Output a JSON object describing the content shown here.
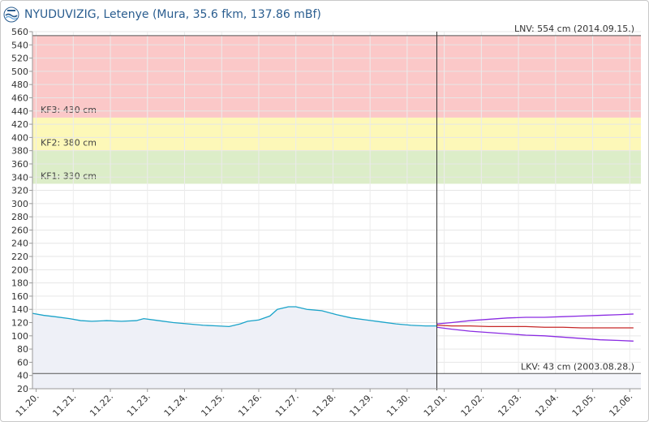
{
  "header": {
    "title": "NYUDUVIZIG, Letenye (Mura, 35.6 fkm, 137.86 mBf)",
    "logo_icon": "water-authority-logo-icon"
  },
  "chart_data": {
    "type": "line",
    "title": "NYUDUVIZIG, Letenye (Mura, 35.6 fkm, 137.86 mBf)",
    "xlabel": "",
    "ylabel": "",
    "ylim": [
      20,
      560
    ],
    "y_ticks": [
      20,
      40,
      60,
      80,
      100,
      120,
      140,
      160,
      180,
      200,
      220,
      240,
      260,
      280,
      300,
      320,
      340,
      360,
      380,
      400,
      420,
      440,
      460,
      480,
      500,
      520,
      540,
      560
    ],
    "x_tick_labels": [
      "11.20.",
      "11.21.",
      "11.22.",
      "11.23.",
      "11.24.",
      "11.25.",
      "11.26.",
      "11.27.",
      "11.28.",
      "11.29.",
      "11.30.",
      "12.01.",
      "12.02.",
      "12.03.",
      "12.04.",
      "12.05.",
      "12.06."
    ],
    "xlim": [
      0,
      16.4
    ],
    "current_time_x": 10.9,
    "grid": true,
    "zones": [
      {
        "label": "KF1: 330 cm",
        "from": 330,
        "to": 380,
        "color": "#dcedc8"
      },
      {
        "label": "KF2: 380 cm",
        "from": 380,
        "to": 430,
        "color": "#fdf8b8"
      },
      {
        "label": "KF3: 430 cm",
        "from": 430,
        "to": 554,
        "color": "#fbc8c8"
      }
    ],
    "reference_lines": [
      {
        "label": "LNV: 554 cm (2014.09.15.)",
        "value": 554,
        "color": "#555555"
      },
      {
        "label": "LKV: 43 cm (2003.08.28.)",
        "value": 43,
        "color": "#555555"
      }
    ],
    "series": [
      {
        "color": "#1aa3c9",
        "fill": "#eef0f7",
        "x": [
          0,
          0.3,
          0.6,
          1.0,
          1.3,
          1.6,
          2.0,
          2.4,
          2.8,
          3.0,
          3.4,
          3.8,
          4.2,
          4.6,
          5.0,
          5.3,
          5.6,
          5.8,
          6.1,
          6.4,
          6.6,
          6.9,
          7.1,
          7.4,
          7.8,
          8.2,
          8.6,
          9.0,
          9.4,
          9.8,
          10.2,
          10.6,
          10.9
        ],
        "values": [
          134,
          131,
          129,
          126,
          123,
          122,
          123,
          122,
          123,
          126,
          123,
          120,
          118,
          116,
          115,
          114,
          118,
          122,
          124,
          130,
          140,
          144,
          144,
          140,
          138,
          132,
          127,
          124,
          121,
          118,
          116,
          115,
          115
        ]
      },
      {
        "color": "#8a2be2",
        "x": [
          10.9,
          11.3,
          11.8,
          12.3,
          12.8,
          13.3,
          13.8,
          14.3,
          14.8,
          15.3,
          15.8,
          16.2
        ],
        "values": [
          118,
          120,
          123,
          125,
          127,
          128,
          128,
          129,
          130,
          131,
          132,
          133
        ]
      },
      {
        "color": "#c62828",
        "x": [
          10.9,
          11.3,
          11.8,
          12.3,
          12.8,
          13.3,
          13.8,
          14.3,
          14.8,
          15.3,
          15.8,
          16.2
        ],
        "values": [
          116,
          115,
          115,
          114,
          114,
          114,
          113,
          113,
          112,
          112,
          112,
          112
        ]
      },
      {
        "color": "#8a2be2",
        "x": [
          10.9,
          11.3,
          11.8,
          12.3,
          12.8,
          13.3,
          13.8,
          14.3,
          14.8,
          15.3,
          15.8,
          16.2
        ],
        "values": [
          113,
          110,
          107,
          105,
          103,
          101,
          100,
          98,
          96,
          94,
          93,
          92
        ]
      }
    ]
  }
}
